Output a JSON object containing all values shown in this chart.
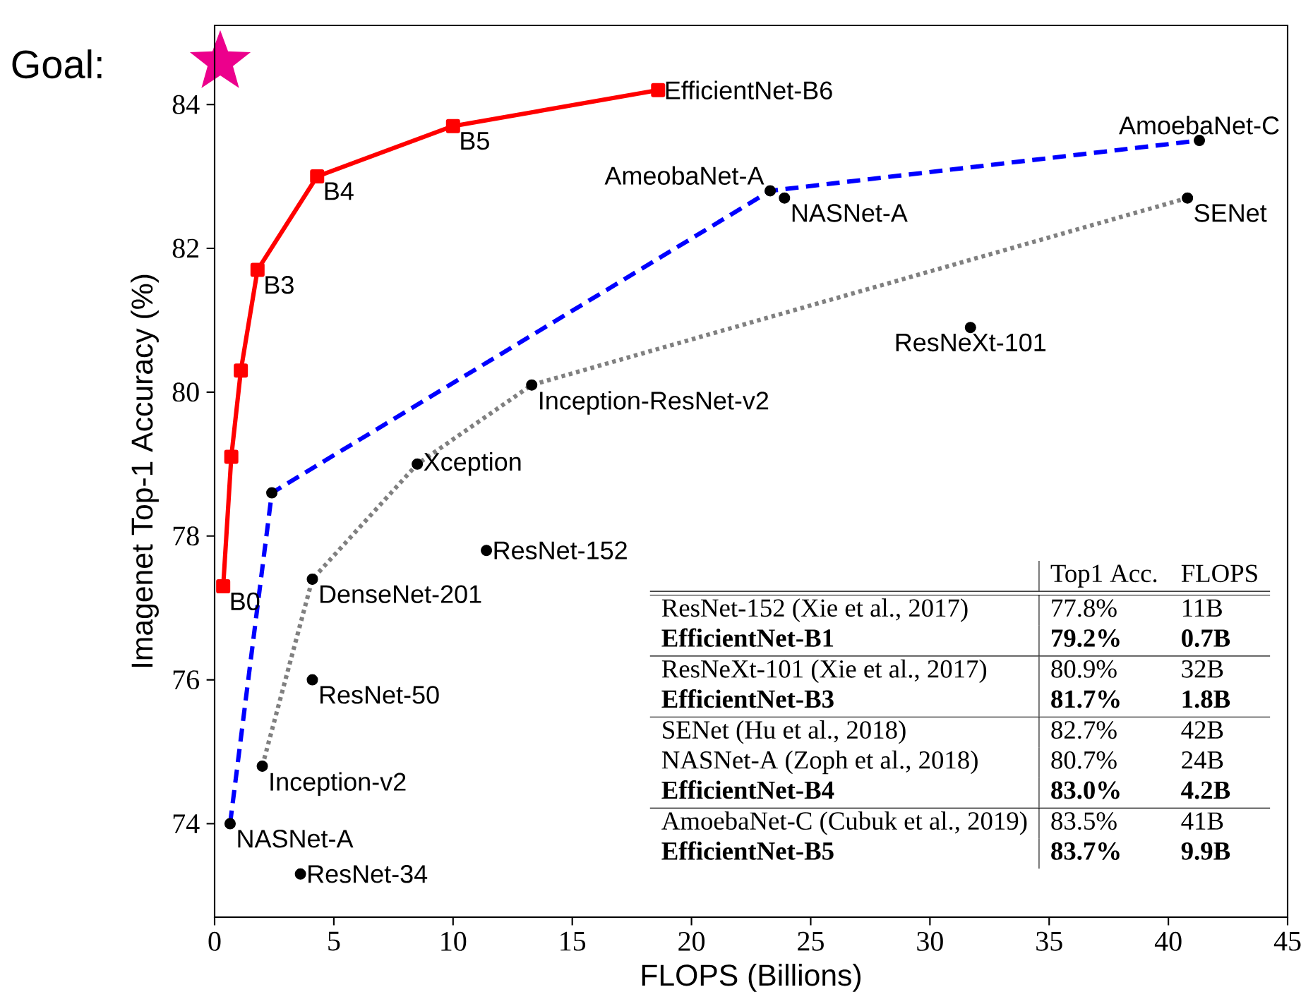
{
  "chart_data": {
    "type": "line",
    "xlabel": "FLOPS (Billions)",
    "ylabel": "Imagenet Top-1 Accuracy (%)",
    "xlim": [
      0,
      45
    ],
    "ylim": [
      72.7,
      85.1
    ],
    "xticks": [
      0,
      5,
      10,
      15,
      20,
      25,
      30,
      35,
      40,
      45
    ],
    "yticks": [
      74,
      76,
      78,
      80,
      82,
      84
    ],
    "series": [
      {
        "color": "#ff0000",
        "line_style": "solid",
        "marker": "square",
        "x": [
          0.36,
          0.7,
          1.1,
          1.8,
          4.3,
          10.0,
          18.6
        ],
        "values": [
          77.3,
          79.1,
          80.3,
          81.7,
          83.0,
          83.7,
          84.2
        ]
      },
      {
        "color": "#0000ff",
        "line_style": "dashed",
        "marker": "none",
        "x": [
          0.65,
          2.4,
          23.3,
          41.3
        ],
        "values": [
          74.0,
          78.6,
          82.8,
          83.5
        ]
      },
      {
        "color": "#808080",
        "line_style": "dotted",
        "marker": "none",
        "x": [
          2.0,
          4.1,
          8.5,
          13.3,
          40.8
        ],
        "values": [
          74.8,
          77.4,
          79.0,
          80.1,
          82.7
        ]
      },
      {
        "type": "scatter",
        "color": "#000000",
        "marker": "circle",
        "x": [
          0.65,
          2.4,
          23.3,
          41.3,
          2.0,
          4.1,
          8.5,
          13.3,
          40.8,
          3.6,
          4.1,
          11.4,
          31.7,
          23.9
        ],
        "values": [
          74.0,
          78.6,
          82.8,
          83.5,
          74.8,
          77.4,
          79.0,
          80.1,
          82.7,
          73.3,
          76.0,
          77.8,
          80.9,
          82.7
        ]
      }
    ],
    "annotations": [
      "Goal:",
      {
        "text": "EfficientNet-B6",
        "x": 18.6,
        "y": 84.2
      },
      {
        "text": "B5",
        "x": 10.0,
        "y": 83.7
      },
      {
        "text": "B4",
        "x": 4.3,
        "y": 83.0
      },
      {
        "text": "B3",
        "x": 1.8,
        "y": 81.7
      },
      {
        "text": "B0",
        "x": 0.36,
        "y": 77.3
      },
      {
        "text": "AmoebaNet-C",
        "x": 41.3,
        "y": 83.5
      },
      {
        "text": "AmeobaNet-A",
        "x": 23.3,
        "y": 82.8
      },
      {
        "text": "NASNet-A",
        "x": 23.9,
        "y": 82.7
      },
      {
        "text": "SENet",
        "x": 40.8,
        "y": 82.7
      },
      {
        "text": "ResNeXt-101",
        "x": 31.7,
        "y": 80.9
      },
      {
        "text": "Inception-ResNet-v2",
        "x": 13.3,
        "y": 80.1
      },
      {
        "text": "Xception",
        "x": 8.5,
        "y": 79.0
      },
      {
        "text": "ResNet-152",
        "x": 11.4,
        "y": 77.8
      },
      {
        "text": "DenseNet-201",
        "x": 4.1,
        "y": 77.4
      },
      {
        "text": "ResNet-50",
        "x": 4.1,
        "y": 76.0
      },
      {
        "text": "Inception-v2",
        "x": 2.0,
        "y": 74.8
      },
      {
        "text": "NASNet-A",
        "x": 0.65,
        "y": 74.0
      },
      {
        "text": "ResNet-34",
        "x": 3.6,
        "y": 73.3
      },
      "Top1 Acc.",
      "FLOPS",
      "ResNet-152 (Xie et al., 2017)",
      "77.8%",
      "11B",
      "EfficientNet-B1",
      "79.2%",
      "0.7B",
      "ResNeXt-101 (Xie et al., 2017)",
      "80.9%",
      "32B",
      "EfficientNet-B3",
      "81.7%",
      "1.8B",
      "SENet (Hu et al., 2018)",
      "82.7%",
      "42B",
      "NASNet-A (Zoph et al., 2018)",
      "80.7%",
      "24B",
      "EfficientNet-B4",
      "83.0%",
      "4.2B",
      "AmoebaNet-C (Cubuk et al., 2019)",
      "83.5%",
      "41B",
      "EfficientNet-B5",
      "83.7%",
      "9.9B"
    ]
  }
}
